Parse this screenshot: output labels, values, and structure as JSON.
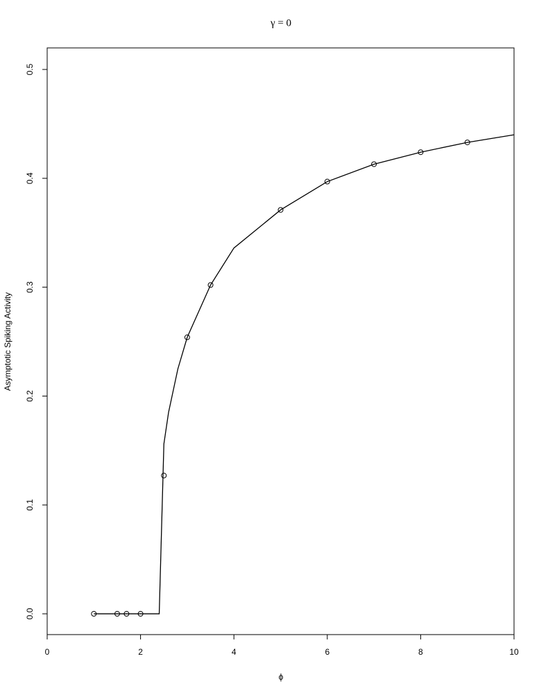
{
  "chart_data": {
    "type": "line",
    "title": "γ = 0",
    "xlabel": "ϕ",
    "ylabel": "Asymptotic Spiking Activity",
    "xlim": [
      0,
      10
    ],
    "ylim": [
      -0.0191,
      0.5198
    ],
    "xticks": [
      0,
      2,
      4,
      6,
      8,
      10
    ],
    "yticks": [
      {
        "value": 0,
        "label": "0.0"
      },
      0.1,
      0.2,
      0.3,
      0.4,
      0.5
    ],
    "series": [
      {
        "color": "#000000",
        "marker": "none",
        "line": true,
        "x": [
          1,
          2.4,
          2.5,
          2.6,
          2.8,
          3,
          3.5,
          4,
          5,
          6,
          7,
          8,
          9,
          10
        ],
        "values": [
          0,
          0,
          0.156,
          0.185,
          0.225,
          0.254,
          0.302,
          0.336,
          0.371,
          0.397,
          0.413,
          0.424,
          0.433,
          0.44
        ]
      },
      {
        "color": "#000000",
        "marker": "circle",
        "line": false,
        "x": [
          1,
          1.5,
          1.7,
          2,
          2.5,
          3,
          3.5,
          5,
          6,
          7,
          8,
          9
        ],
        "values": [
          0,
          0,
          0,
          0,
          0.127,
          0.254,
          0.302,
          0.371,
          0.397,
          0.413,
          0.424,
          0.433
        ]
      }
    ]
  }
}
